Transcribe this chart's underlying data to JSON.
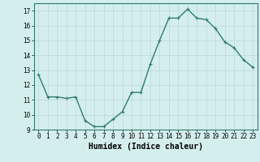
{
  "x": [
    0,
    1,
    2,
    3,
    4,
    5,
    6,
    7,
    8,
    9,
    10,
    11,
    12,
    13,
    14,
    15,
    16,
    17,
    18,
    19,
    20,
    21,
    22,
    23
  ],
  "y": [
    12.7,
    11.2,
    11.2,
    11.1,
    11.2,
    9.6,
    9.2,
    9.2,
    9.7,
    10.2,
    11.5,
    11.5,
    13.4,
    15.0,
    16.5,
    16.5,
    17.1,
    16.5,
    16.4,
    15.8,
    14.9,
    14.5,
    13.7,
    13.2
  ],
  "line_color": "#2e7d6e",
  "marker": "+",
  "markersize": 3,
  "linewidth": 1.0,
  "xlabel": "Humidex (Indice chaleur)",
  "xlabel_fontsize": 7,
  "xlabel_fontweight": "bold",
  "bg_color": "#d4eeed",
  "grid_color": "#b8d8d6",
  "ylim": [
    9,
    17.5
  ],
  "yticks": [
    9,
    10,
    11,
    12,
    13,
    14,
    15,
    16,
    17
  ],
  "xticks": [
    0,
    1,
    2,
    3,
    4,
    5,
    6,
    7,
    8,
    9,
    10,
    11,
    12,
    13,
    14,
    15,
    16,
    17,
    18,
    19,
    20,
    21,
    22,
    23
  ],
  "tick_fontsize": 5.5,
  "axis_color": "#2e7d6e",
  "spine_color": "#2e7d6e"
}
